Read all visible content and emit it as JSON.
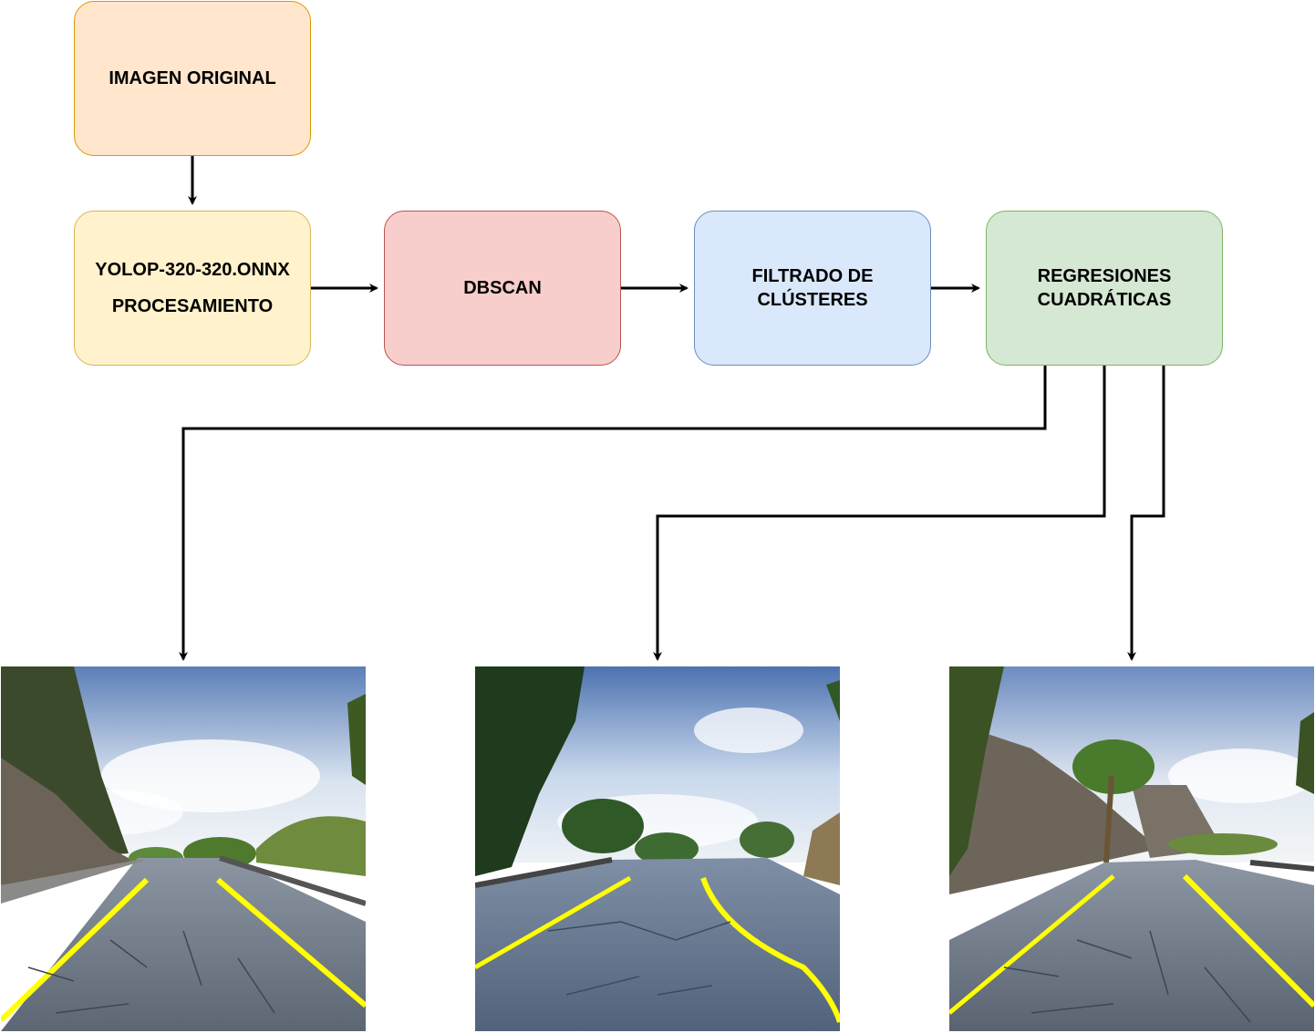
{
  "nodes": {
    "original": {
      "label": "IMAGEN ORIGINAL"
    },
    "yolop": {
      "line1": "YOLOP-320-320.ONNX",
      "line2": "PROCESAMIENTO"
    },
    "dbscan": {
      "label": "DBSCAN"
    },
    "filtrado": {
      "line1": "FILTRADO DE",
      "line2": "CLÚSTERES"
    },
    "regresiones": {
      "line1": "REGRESIONES",
      "line2": "CUADRÁTICAS"
    }
  },
  "edges": [
    [
      "original",
      "yolop"
    ],
    [
      "yolop",
      "dbscan"
    ],
    [
      "dbscan",
      "filtrado"
    ],
    [
      "filtrado",
      "regresiones"
    ],
    [
      "regresiones",
      "result-image-1"
    ],
    [
      "regresiones",
      "result-image-2"
    ],
    [
      "regresiones",
      "result-image-3"
    ]
  ],
  "colors": {
    "original_fill": "#ffe6cc",
    "original_stroke": "#d79b00",
    "yolop_fill": "#fff2cc",
    "yolop_stroke": "#d6b656",
    "dbscan_fill": "#f8cecc",
    "dbscan_stroke": "#b85450",
    "filtrado_fill": "#dae8fc",
    "filtrado_stroke": "#6c8ebf",
    "regresiones_fill": "#d5e8d4",
    "regresiones_stroke": "#82b366",
    "lane_detection": "#ffff00",
    "connector": "#000000"
  },
  "result_images": [
    "road-scene-lane-detection",
    "road-scene-lane-detection",
    "road-scene-lane-detection"
  ]
}
